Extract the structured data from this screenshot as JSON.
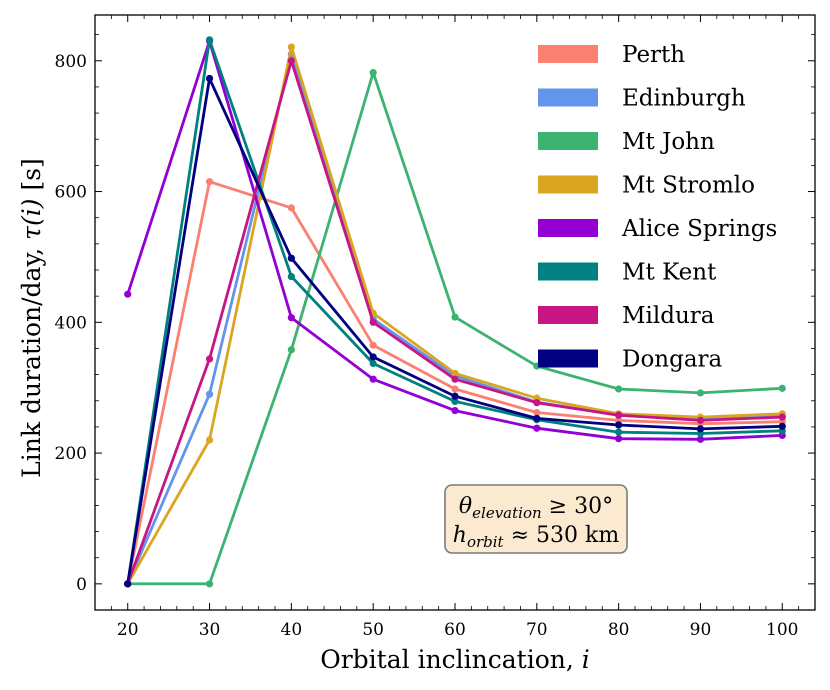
{
  "chart_data": {
    "type": "line",
    "title": "",
    "xlabel": "Orbital inclincation, ",
    "xlabel_var": "i",
    "ylabel_prefix": "Link duration/day, ",
    "ylabel_var": "τ(i)",
    "ylabel_suffix": " [s]",
    "x": [
      20,
      30,
      40,
      50,
      60,
      70,
      80,
      90,
      100
    ],
    "xlim": [
      16,
      104
    ],
    "ylim": [
      -40,
      870
    ],
    "xticks": [
      20,
      30,
      40,
      50,
      60,
      70,
      80,
      90,
      100
    ],
    "yticks": [
      0,
      200,
      400,
      600,
      800
    ],
    "legend_position": "top-right",
    "series": [
      {
        "name": "Perth",
        "color": "#fa8072",
        "values": [
          0,
          615,
          575,
          365,
          298,
          262,
          250,
          245,
          248
        ]
      },
      {
        "name": "Edinburgh",
        "color": "#6495ed",
        "values": [
          0,
          290,
          810,
          405,
          318,
          278,
          258,
          252,
          256
        ]
      },
      {
        "name": "Mt John",
        "color": "#3cb371",
        "values": [
          0,
          0,
          358,
          782,
          408,
          333,
          298,
          292,
          299
        ]
      },
      {
        "name": "Mt Stromlo",
        "color": "#daa520",
        "values": [
          0,
          220,
          821,
          414,
          322,
          284,
          260,
          255,
          260
        ]
      },
      {
        "name": "Alice Springs",
        "color": "#9400d3",
        "values": [
          443,
          830,
          407,
          313,
          265,
          238,
          222,
          221,
          227
        ]
      },
      {
        "name": "Mt Kent",
        "color": "#008080",
        "values": [
          0,
          832,
          470,
          337,
          279,
          251,
          232,
          230,
          234
        ]
      },
      {
        "name": "Mildura",
        "color": "#c71585",
        "values": [
          0,
          344,
          800,
          400,
          313,
          277,
          258,
          250,
          255
        ]
      },
      {
        "name": "Dongara",
        "color": "#000080",
        "values": [
          0,
          773,
          498,
          347,
          287,
          253,
          243,
          237,
          241
        ]
      }
    ],
    "annotation": {
      "line1_symbol": "θ",
      "line1_sub": "elevation",
      "line1_rest": " ≥ 30°",
      "line2_symbol": "h",
      "line2_sub": "orbit",
      "line2_rest": " ≈ 530 km",
      "background": "#fbe9d0",
      "border": "#7a7a7a"
    }
  }
}
